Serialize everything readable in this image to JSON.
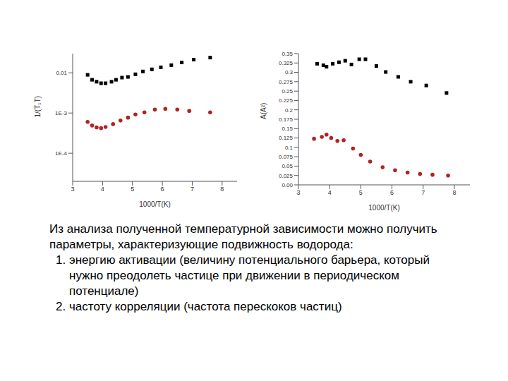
{
  "chart_data": [
    {
      "type": "scatter",
      "x_label": "1000/T(K)",
      "y_label": "1/(T₁T)",
      "log": "y",
      "xlim": [
        3,
        8.5
      ],
      "xticks": [
        3,
        4,
        5,
        6,
        7,
        8
      ],
      "ylim": [
        2e-05,
        0.03
      ],
      "yticks": [
        {
          "value": 0.0001,
          "label": "1E-4"
        },
        {
          "value": 0.001,
          "label": "1E-3"
        },
        0.01
      ],
      "grid": false,
      "series": [
        {
          "color": "#000000",
          "marker": "square",
          "x": [
            3.5,
            3.65,
            3.8,
            3.95,
            4.1,
            4.3,
            4.45,
            4.65,
            4.85,
            5.1,
            5.35,
            5.65,
            5.95,
            6.3,
            6.65,
            7.05,
            7.6
          ],
          "values": [
            0.0089,
            0.0067,
            0.006,
            0.0055,
            0.0055,
            0.006,
            0.0067,
            0.0076,
            0.0079,
            0.0092,
            0.0108,
            0.0122,
            0.0137,
            0.0155,
            0.0181,
            0.0213,
            0.0239
          ]
        },
        {
          "color": "#b22222",
          "marker": "circle",
          "x": [
            3.5,
            3.65,
            3.8,
            3.95,
            4.1,
            4.35,
            4.6,
            4.85,
            5.1,
            5.4,
            5.75,
            6.1,
            6.5,
            6.9,
            7.6
          ],
          "values": [
            0.0006,
            0.00049,
            0.00044,
            0.00042,
            0.00045,
            0.00053,
            0.00065,
            0.00077,
            0.00092,
            0.00104,
            0.00122,
            0.00127,
            0.00122,
            0.00113,
            0.00104
          ]
        }
      ]
    },
    {
      "type": "scatter",
      "x_label": "1000/T(K)",
      "y_label": "A(A²)",
      "xlim": [
        3,
        8.5
      ],
      "xticks": [
        3,
        4,
        5,
        6,
        7,
        8
      ],
      "ylim": [
        0,
        0.35
      ],
      "yticks": [
        {
          "value": 0,
          "label": "0.00"
        },
        0.025,
        0.05,
        0.075,
        0.1,
        0.125,
        0.15,
        0.175,
        0.2,
        0.225,
        0.25,
        0.275,
        0.3,
        0.325,
        0.35
      ],
      "grid": false,
      "series": [
        {
          "color": "#000000",
          "marker": "square",
          "x": [
            3.6,
            3.8,
            3.9,
            4.1,
            4.3,
            4.5,
            4.7,
            4.95,
            5.15,
            5.5,
            5.8,
            6.2,
            6.6,
            7.1,
            7.75
          ],
          "values": [
            0.323,
            0.319,
            0.315,
            0.323,
            0.327,
            0.331,
            0.321,
            0.335,
            0.335,
            0.317,
            0.301,
            0.288,
            0.275,
            0.265,
            0.245
          ]
        },
        {
          "color": "#b22222",
          "marker": "circle",
          "x": [
            3.5,
            3.75,
            3.9,
            4.05,
            4.25,
            4.45,
            4.75,
            5.0,
            5.3,
            5.7,
            6.1,
            6.5,
            6.9,
            7.3,
            7.8
          ],
          "values": [
            0.123,
            0.128,
            0.134,
            0.125,
            0.117,
            0.119,
            0.097,
            0.08,
            0.062,
            0.047,
            0.039,
            0.033,
            0.029,
            0.027,
            0.025
          ]
        }
      ]
    }
  ],
  "text": {
    "intro": "Из анализа полученной температурной зависимости можно получить параметры, характеризующие подвижность водорода:",
    "items": [
      "энергию активации (величину потенциального барьера, который нужно преодолеть частице при движении в периодическом потенциале)",
      "частоту корреляции (частота перескоков частиц)"
    ]
  }
}
